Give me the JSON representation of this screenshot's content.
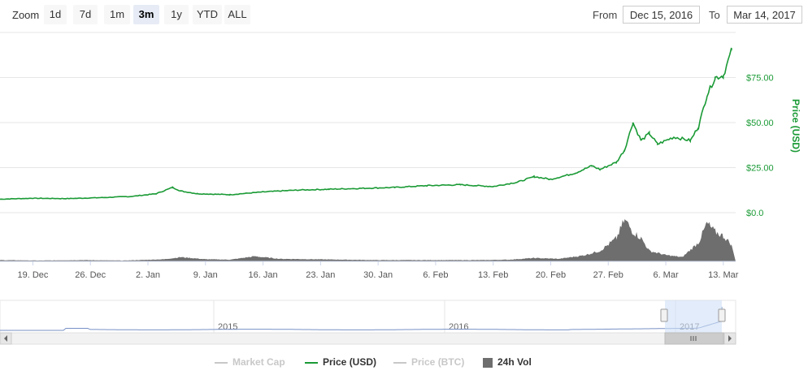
{
  "toolbar": {
    "zoom_label": "Zoom",
    "buttons": [
      {
        "label": "1d",
        "active": false
      },
      {
        "label": "7d",
        "active": false
      },
      {
        "label": "1m",
        "active": false
      },
      {
        "label": "3m",
        "active": true
      },
      {
        "label": "1y",
        "active": false
      },
      {
        "label": "YTD",
        "active": false
      },
      {
        "label": "ALL",
        "active": false
      }
    ],
    "from_label": "From",
    "from_value": "Dec 15, 2016",
    "to_label": "To",
    "to_value": "Mar 14, 2017"
  },
  "colors": {
    "price": "#1a9a35",
    "volume": "#6e6e6e",
    "market_cap": "#c8c8c8",
    "price_btc": "#c8c8c8",
    "navigator": "#7790c6",
    "navigator_mask": "#cfe0f7"
  },
  "chart_data": {
    "type": "line",
    "ylabel": "Price (USD)",
    "y_ticks": [
      "$0.0",
      "$25.00",
      "$50.00",
      "$75.00"
    ],
    "ylim": [
      0,
      100
    ],
    "x_tick_labels": [
      "19. Dec",
      "26. Dec",
      "2. Jan",
      "9. Jan",
      "16. Jan",
      "23. Jan",
      "30. Jan",
      "6. Feb",
      "13. Feb",
      "20. Feb",
      "27. Feb",
      "6. Mar",
      "13. Mar"
    ],
    "series": [
      {
        "name": "Price (USD)",
        "x": [
          "2016-12-15",
          "2016-12-19",
          "2016-12-23",
          "2016-12-27",
          "2016-12-31",
          "2017-01-03",
          "2017-01-05",
          "2017-01-06",
          "2017-01-08",
          "2017-01-12",
          "2017-01-16",
          "2017-01-20",
          "2017-01-24",
          "2017-01-28",
          "2017-02-01",
          "2017-02-05",
          "2017-02-09",
          "2017-02-13",
          "2017-02-16",
          "2017-02-18",
          "2017-02-20",
          "2017-02-23",
          "2017-02-25",
          "2017-02-26",
          "2017-02-28",
          "2017-03-01",
          "2017-03-02",
          "2017-03-03",
          "2017-03-04",
          "2017-03-05",
          "2017-03-07",
          "2017-03-09",
          "2017-03-10",
          "2017-03-11",
          "2017-03-12",
          "2017-03-13",
          "2017-03-14"
        ],
        "values": [
          7.5,
          8.0,
          7.8,
          8.3,
          9.0,
          10.5,
          14.0,
          12.0,
          10.5,
          10.0,
          11.5,
          12.5,
          13.0,
          13.5,
          14.0,
          15.0,
          15.5,
          14.5,
          17.0,
          20.0,
          18.5,
          22.0,
          26.0,
          24.0,
          28.0,
          35.0,
          50.0,
          40.0,
          44.0,
          38.0,
          42.0,
          40.0,
          48.0,
          65.0,
          75.0,
          76.0,
          90.0
        ]
      },
      {
        "name": "24h Vol",
        "x": [
          "2016-12-15",
          "2016-12-20",
          "2016-12-25",
          "2016-12-30",
          "2017-01-04",
          "2017-01-06",
          "2017-01-09",
          "2017-01-12",
          "2017-01-15",
          "2017-01-18",
          "2017-01-22",
          "2017-01-26",
          "2017-01-30",
          "2017-02-03",
          "2017-02-07",
          "2017-02-11",
          "2017-02-15",
          "2017-02-18",
          "2017-02-21",
          "2017-02-24",
          "2017-02-26",
          "2017-02-28",
          "2017-03-01",
          "2017-03-02",
          "2017-03-03",
          "2017-03-04",
          "2017-03-06",
          "2017-03-08",
          "2017-03-10",
          "2017-03-11",
          "2017-03-12",
          "2017-03-13",
          "2017-03-14"
        ],
        "values": [
          3,
          2,
          3,
          2,
          5,
          10,
          5,
          4,
          12,
          6,
          5,
          4,
          3,
          3,
          3,
          3,
          4,
          8,
          6,
          14,
          25,
          55,
          100,
          70,
          55,
          25,
          15,
          10,
          45,
          90,
          70,
          60,
          40
        ]
      }
    ],
    "navigator": {
      "year_labels": [
        "2015",
        "2016",
        "2017"
      ]
    },
    "legend": [
      "Market Cap",
      "Price (USD)",
      "Price (BTC)",
      "24h Vol"
    ]
  }
}
